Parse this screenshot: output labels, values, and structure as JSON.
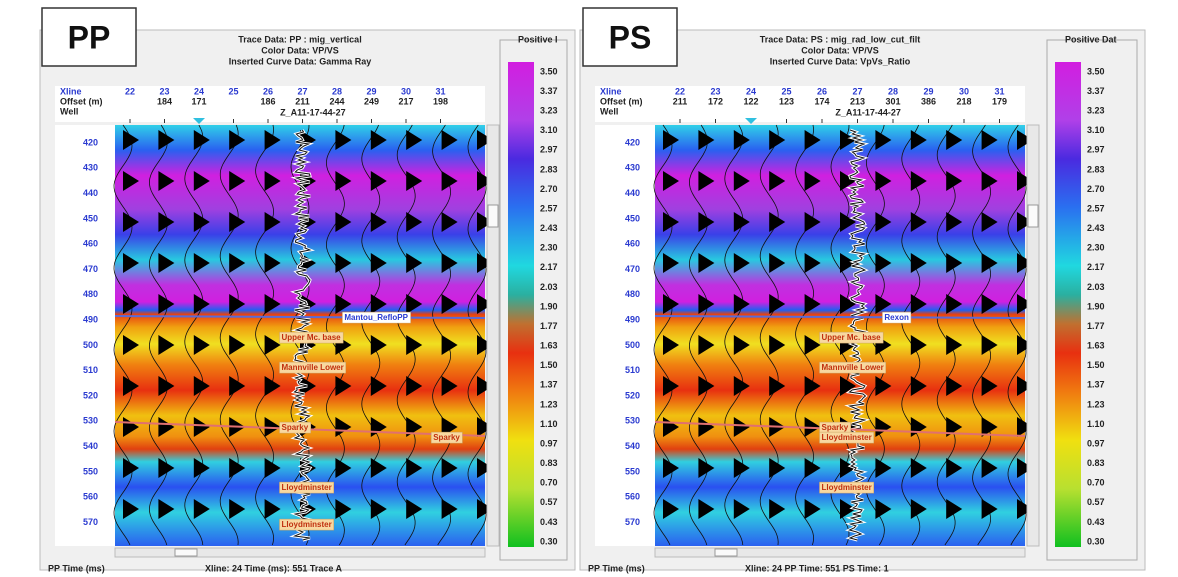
{
  "panels": [
    {
      "tag": "PP",
      "header": [
        "Trace Data: PP : mig_vertical",
        "Color Data: VP/VS",
        "Inserted Curve Data:  Gamma Ray"
      ],
      "colorbar_title": "Positive I",
      "colorbar_ticks": [
        "3.50",
        "3.37",
        "3.23",
        "3.10",
        "2.97",
        "2.83",
        "2.70",
        "2.57",
        "2.43",
        "2.30",
        "2.17",
        "2.03",
        "1.90",
        "1.77",
        "1.63",
        "1.50",
        "1.37",
        "1.23",
        "1.10",
        "0.97",
        "0.83",
        "0.70",
        "0.57",
        "0.43",
        "0.30"
      ],
      "row_labels": [
        "Xline",
        "Offset (m)",
        "Well"
      ],
      "xlines": [
        "22",
        "23",
        "24",
        "25",
        "26",
        "27",
        "28",
        "29",
        "30",
        "31"
      ],
      "offsets": [
        null,
        "184",
        "171",
        null,
        "186",
        "211",
        "244",
        "249",
        "217",
        "198"
      ],
      "well": "Z_A11-17-44-27",
      "times": [
        "420",
        "430",
        "440",
        "450",
        "460",
        "470",
        "480",
        "490",
        "500",
        "510",
        "520",
        "530",
        "540",
        "550",
        "560",
        "570"
      ],
      "horizons": [
        "Mantou_RefloPP",
        "Upper Mc. base",
        "Mannville Lower",
        "Sparky",
        "Sparky",
        "Lloydminster",
        "Lloydminster"
      ],
      "status": [
        "PP Time (ms)",
        "Xline: 24  Time (ms): 551  Trace A"
      ]
    },
    {
      "tag": "PS",
      "header": [
        "Trace Data: PS : mig_rad_low_cut_filt",
        "Color Data: VP/VS",
        "Inserted Curve Data:  VpVs_Ratio"
      ],
      "colorbar_title": "Positive Dat",
      "colorbar_ticks": [
        "3.50",
        "3.37",
        "3.23",
        "3.10",
        "2.97",
        "2.83",
        "2.70",
        "2.57",
        "2.43",
        "2.30",
        "2.17",
        "2.03",
        "1.90",
        "1.77",
        "1.63",
        "1.50",
        "1.37",
        "1.23",
        "1.10",
        "0.97",
        "0.83",
        "0.70",
        "0.57",
        "0.43",
        "0.30"
      ],
      "row_labels": [
        "Xline",
        "Offset (m)",
        "Well"
      ],
      "xlines": [
        "22",
        "23",
        "24",
        "25",
        "26",
        "27",
        "28",
        "29",
        "30",
        "31"
      ],
      "offsets": [
        "211",
        "172",
        "122",
        "123",
        "174",
        "213",
        "301",
        "386",
        "218",
        "179"
      ],
      "well": "Z_A11-17-44-27",
      "times": [
        "420",
        "430",
        "440",
        "450",
        "460",
        "470",
        "480",
        "490",
        "500",
        "510",
        "520",
        "530",
        "540",
        "550",
        "560",
        "570"
      ],
      "horizons": [
        "Rexon",
        "Upper Mc. base",
        "Mannville Lower",
        "Sparky",
        "Lloydminster",
        "Lloydminster"
      ],
      "status": [
        "PP Time (ms)",
        "Xline: 24  PP Time: 551  PS Time: 1"
      ]
    }
  ]
}
